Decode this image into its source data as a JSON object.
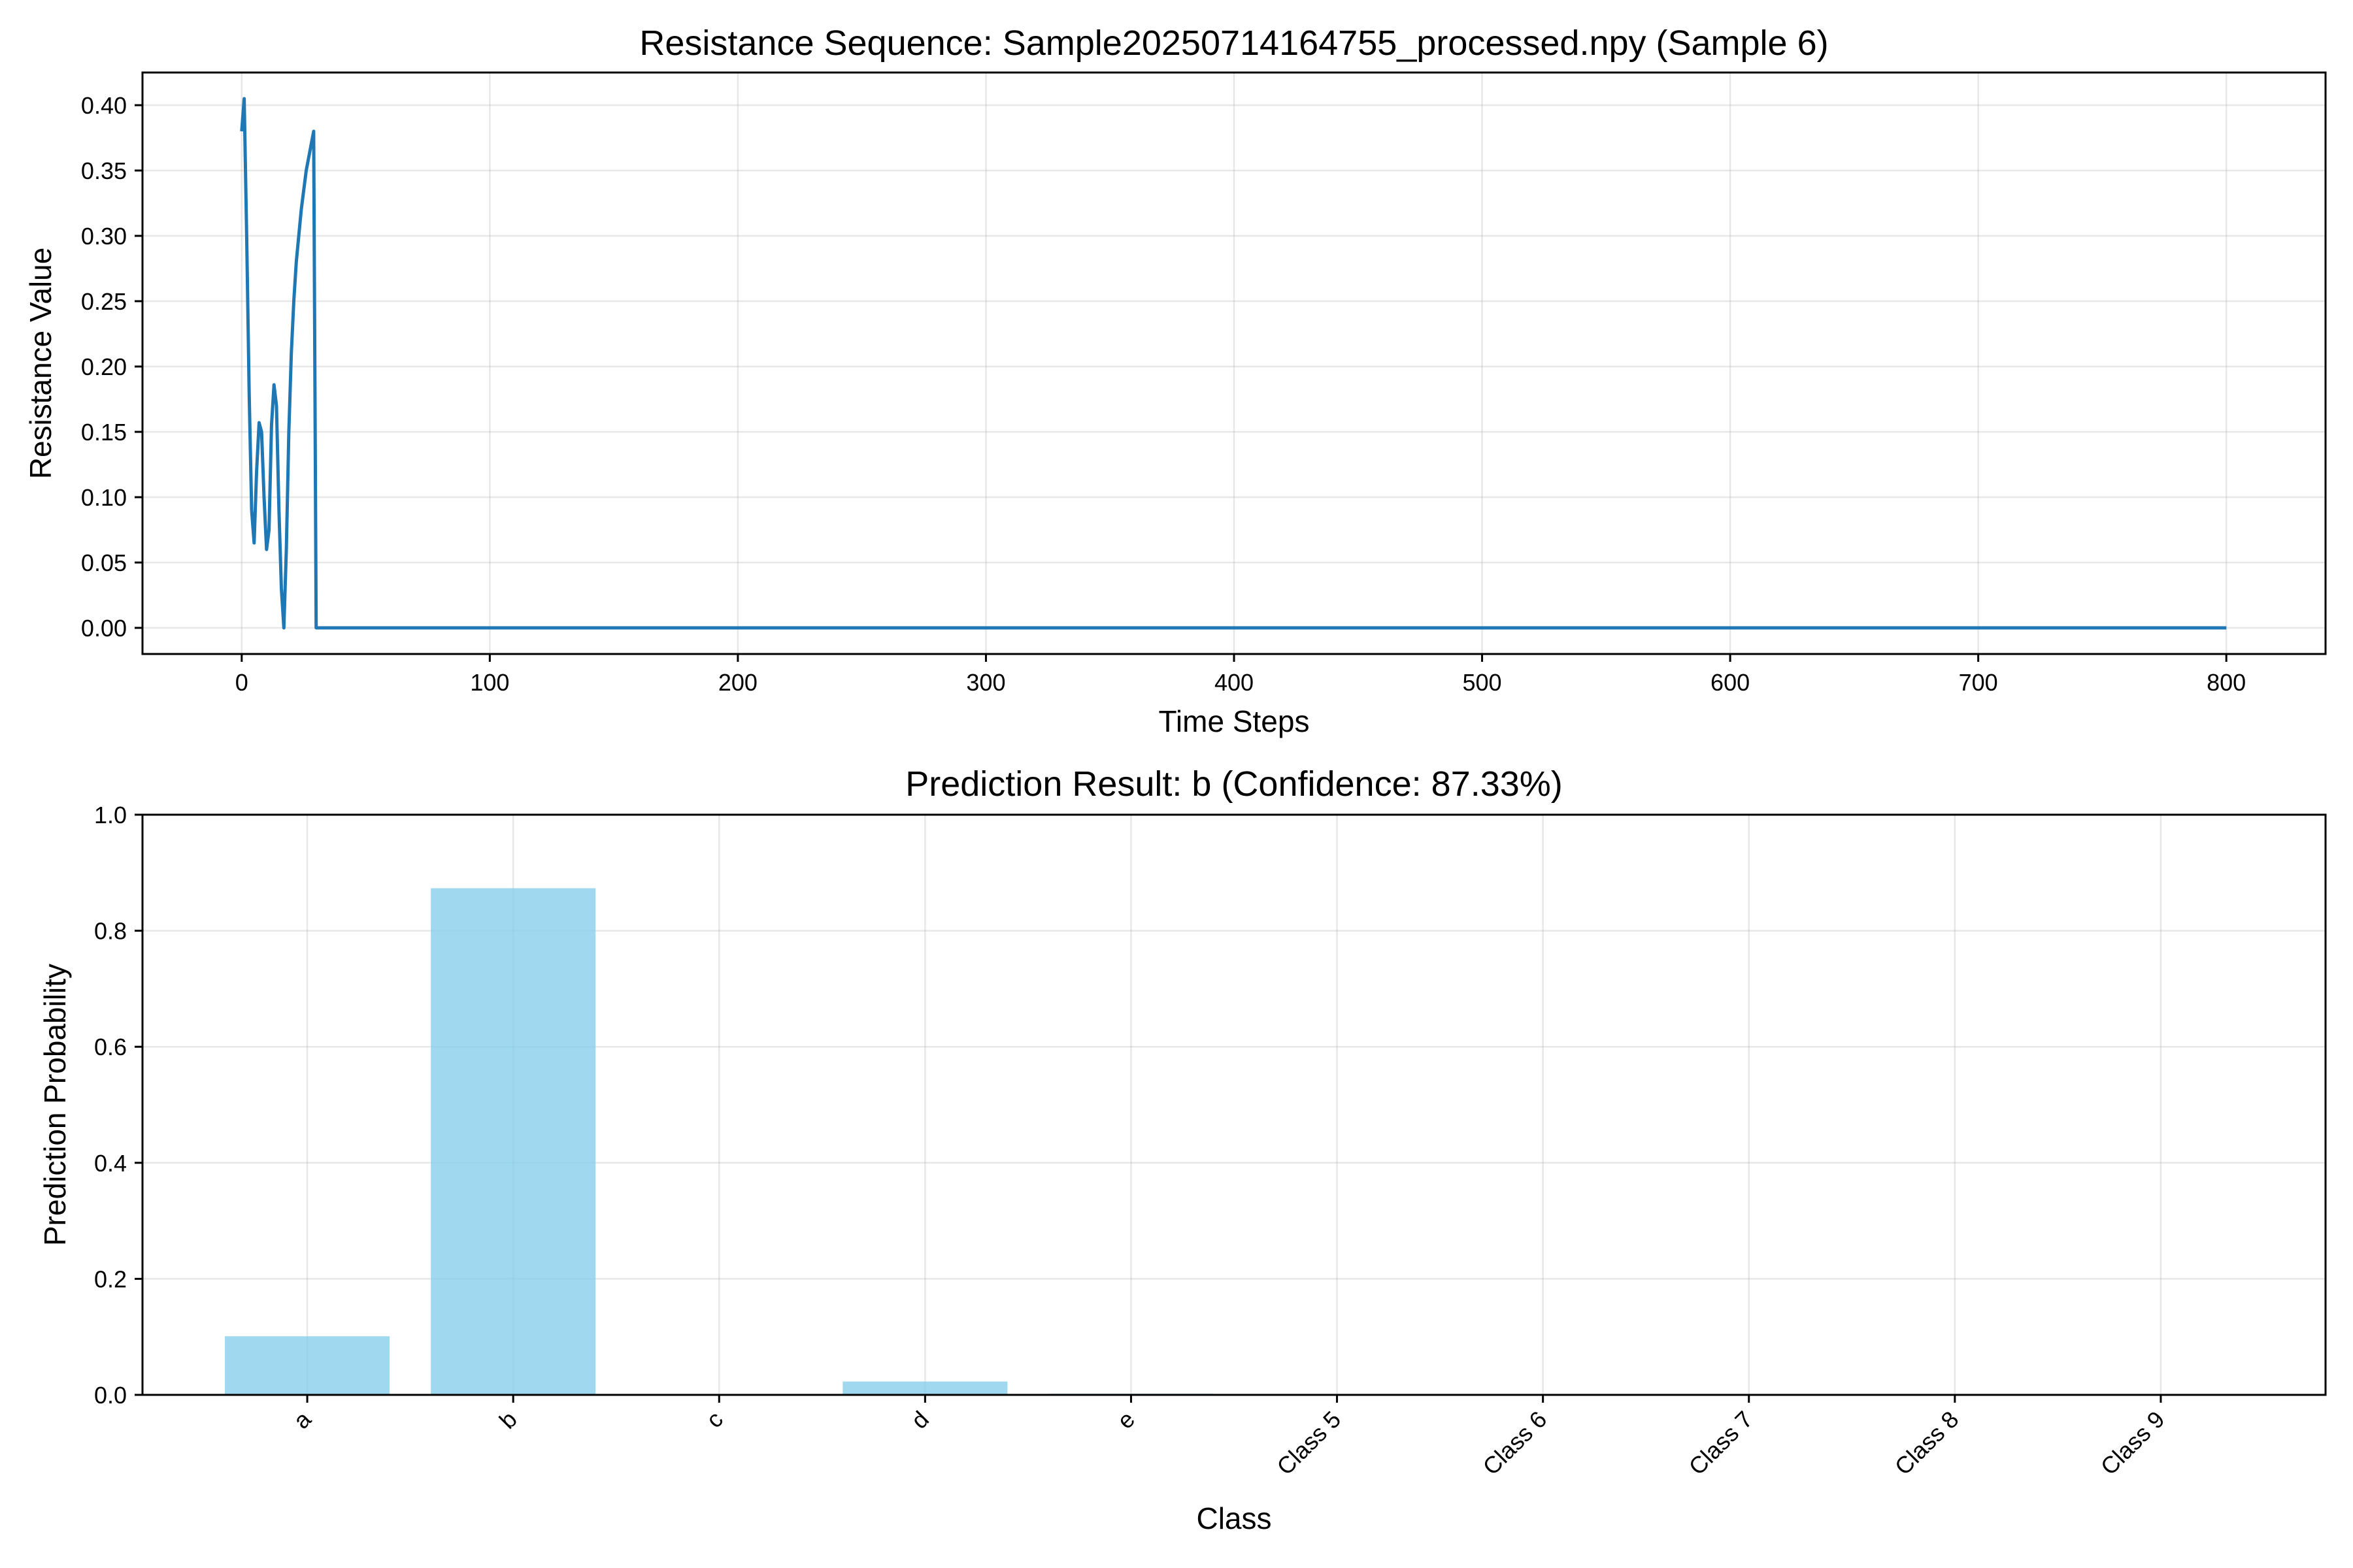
{
  "chart_data": [
    {
      "type": "line",
      "title": "Resistance Sequence: Sample20250714164755_processed.npy (Sample 6)",
      "xlabel": "Time Steps",
      "ylabel": "Resistance Value",
      "xlim": [
        -40,
        840
      ],
      "ylim": [
        -0.02,
        0.425
      ],
      "xticks": [
        0,
        100,
        200,
        300,
        400,
        500,
        600,
        700,
        800
      ],
      "xtick_labels": [
        "0",
        "100",
        "200",
        "300",
        "400",
        "500",
        "600",
        "700",
        "800"
      ],
      "yticks": [
        0.0,
        0.05,
        0.1,
        0.15,
        0.2,
        0.25,
        0.3,
        0.35,
        0.4
      ],
      "ytick_labels": [
        "0.00",
        "0.05",
        "0.10",
        "0.15",
        "0.20",
        "0.25",
        "0.30",
        "0.35",
        "0.40"
      ],
      "grid": true,
      "color": "#1f77b4",
      "x": [
        0,
        1,
        2,
        3,
        4,
        5,
        6,
        7,
        8,
        9,
        10,
        11,
        12,
        13,
        14,
        15,
        16,
        17,
        18,
        19,
        20,
        21,
        22,
        23,
        24,
        25,
        26,
        27,
        28,
        29,
        30,
        31,
        800
      ],
      "y": [
        0.38,
        0.405,
        0.3,
        0.18,
        0.09,
        0.065,
        0.12,
        0.157,
        0.15,
        0.1,
        0.06,
        0.075,
        0.155,
        0.186,
        0.17,
        0.09,
        0.03,
        0.0,
        0.06,
        0.15,
        0.21,
        0.25,
        0.28,
        0.3,
        0.32,
        0.335,
        0.35,
        0.36,
        0.37,
        0.38,
        0.0,
        0.0,
        0.0
      ]
    },
    {
      "type": "bar",
      "title": "Prediction Result: b (Confidence: 87.33%)",
      "xlabel": "Class",
      "ylabel": "Prediction Probability",
      "ylim": [
        0,
        1.0
      ],
      "yticks": [
        0.0,
        0.2,
        0.4,
        0.6,
        0.8,
        1.0
      ],
      "ytick_labels": [
        "0.0",
        "0.2",
        "0.4",
        "0.6",
        "0.8",
        "1.0"
      ],
      "grid": true,
      "color": "#87ceeb",
      "categories": [
        "a",
        "b",
        "c",
        "d",
        "e",
        "Class 5",
        "Class 6",
        "Class 7",
        "Class 8",
        "Class 9"
      ],
      "values": [
        0.101,
        0.8733,
        0.0,
        0.023,
        0.002,
        0.0,
        0.0,
        0.0,
        0.0,
        0.0
      ]
    }
  ]
}
